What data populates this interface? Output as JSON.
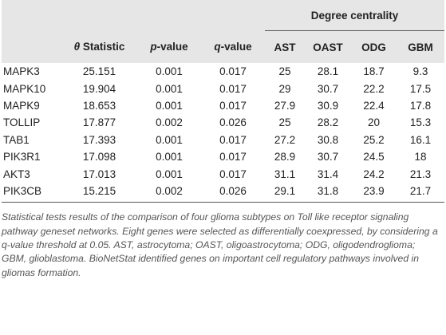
{
  "table": {
    "group_header": "Degree centrality",
    "columns": [
      [],
      [
        {
          "text": "θ",
          "italic": true
        },
        {
          "text": " Statistic"
        }
      ],
      [
        {
          "text": "p",
          "italic": true
        },
        {
          "text": "-value"
        }
      ],
      [
        {
          "text": "q",
          "italic": true
        },
        {
          "text": "-value"
        }
      ],
      [
        {
          "text": "AST"
        }
      ],
      [
        {
          "text": "OAST"
        }
      ],
      [
        {
          "text": "ODG"
        }
      ],
      [
        {
          "text": "GBM"
        }
      ]
    ],
    "rows": [
      [
        "MAPK3",
        25.151,
        0.001,
        0.017,
        25,
        28.1,
        18.7,
        9.3
      ],
      [
        "MAPK10",
        19.904,
        0.001,
        0.017,
        29,
        30.7,
        22.2,
        17.5
      ],
      [
        "MAPK9",
        18.653,
        0.001,
        0.017,
        27.9,
        30.9,
        22.4,
        17.8
      ],
      [
        "TOLLIP",
        17.877,
        0.002,
        0.026,
        25,
        28.2,
        20,
        15.3
      ],
      [
        "TAB1",
        17.393,
        0.001,
        0.017,
        27.2,
        30.8,
        25.2,
        16.1
      ],
      [
        "PIK3R1",
        17.098,
        0.001,
        0.017,
        28.9,
        30.7,
        24.5,
        18
      ],
      [
        "AKT3",
        17.013,
        0.001,
        0.017,
        31.1,
        31.4,
        24.2,
        21.3
      ],
      [
        "PIK3CB",
        15.215,
        0.002,
        0.026,
        29.1,
        31.8,
        23.9,
        21.7
      ]
    ]
  },
  "caption": "Statistical tests results of the comparison of four glioma subtypes on Toll like receptor signaling pathway geneset networks. Eight genes were selected as differentially coexpressed, by considering a q-value threshold at 0.05. AST, astrocytoma; OAST, oligoastrocytoma; ODG, oligodendroglioma; GBM, glioblastoma. BioNetStat identified genes on important cell regulatory pathways involved in gliomas formation."
}
